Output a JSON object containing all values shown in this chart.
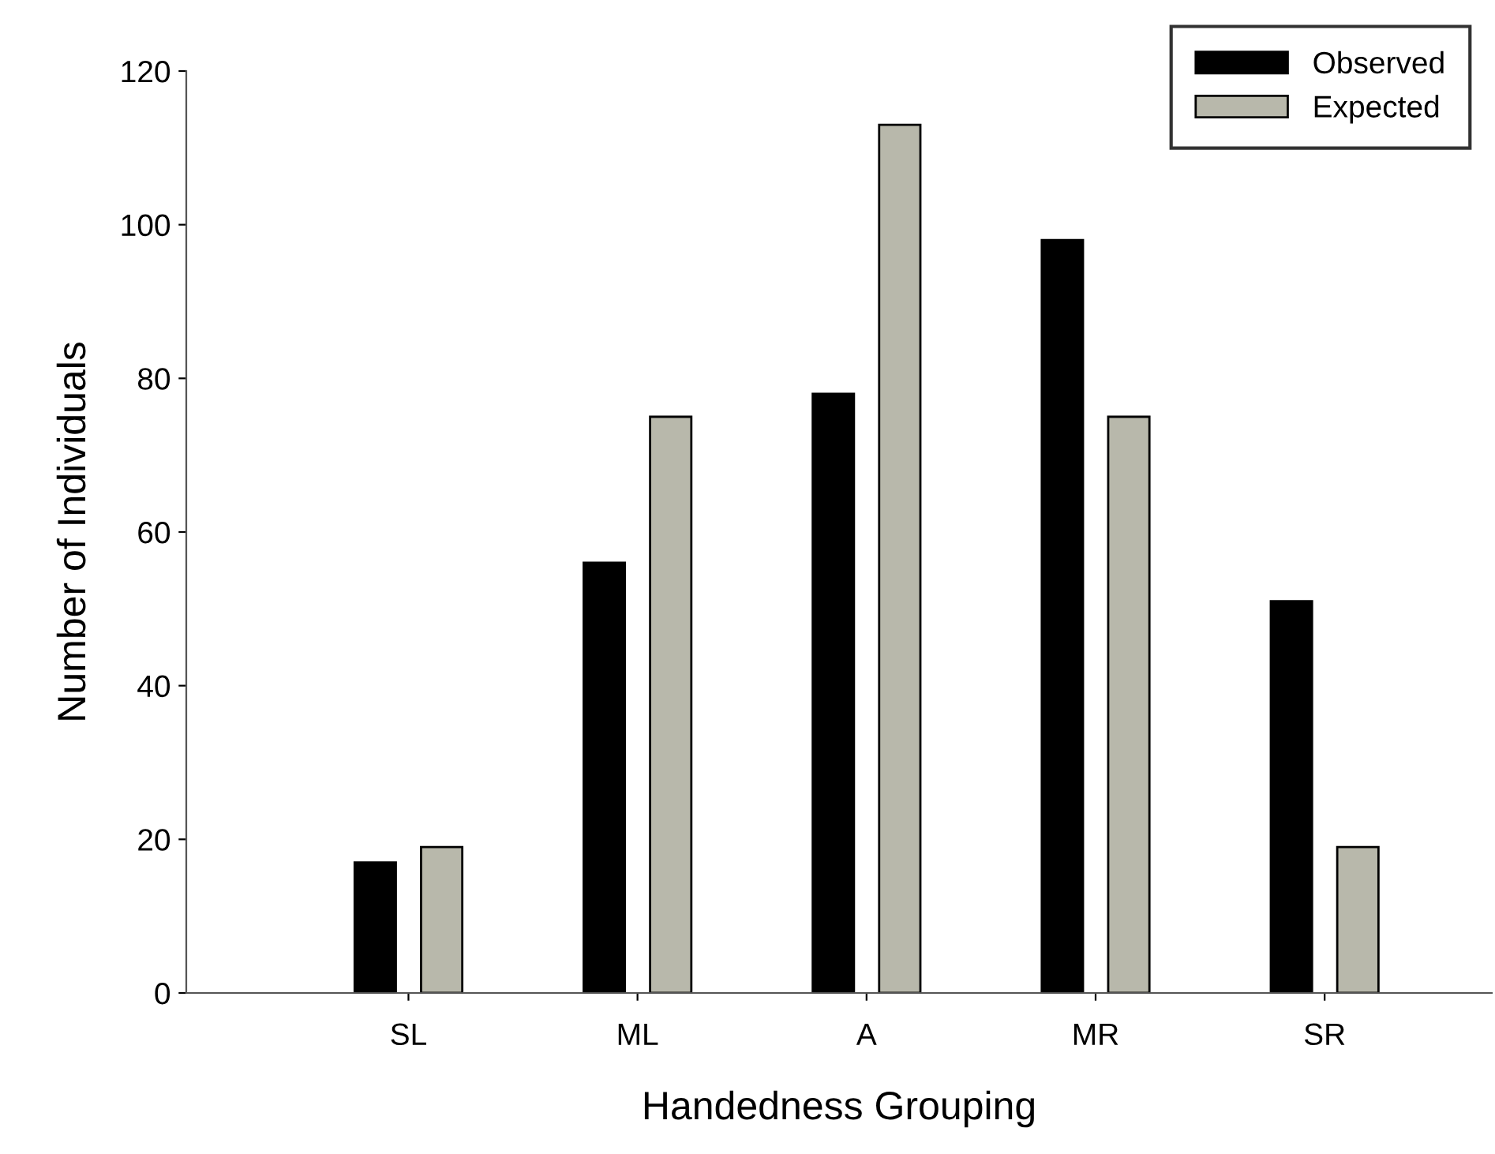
{
  "chart_data": {
    "type": "bar",
    "xlabel": "Handedness Grouping",
    "ylabel": "Number of Individuals",
    "categories": [
      "SL",
      "ML",
      "A",
      "MR",
      "SR"
    ],
    "series": [
      {
        "name": "Observed",
        "color": "#000000",
        "values": [
          17,
          56,
          78,
          98,
          51
        ]
      },
      {
        "name": "Expected",
        "color": "#b8b8ab",
        "values": [
          19,
          75,
          113,
          75,
          19
        ]
      }
    ],
    "ylim": [
      0,
      120
    ],
    "yticks": [
      0,
      20,
      40,
      60,
      80,
      100,
      120
    ],
    "grid": false,
    "legend": "top right"
  }
}
